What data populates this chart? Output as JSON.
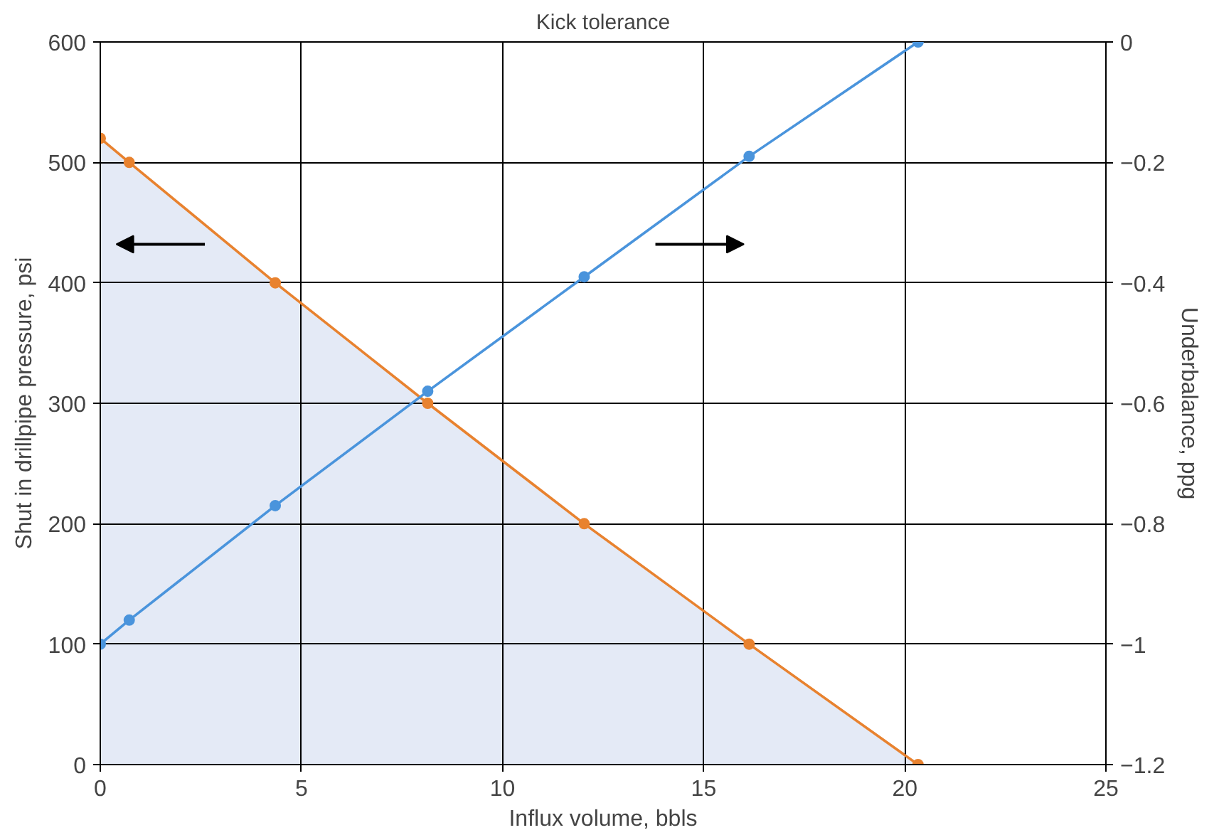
{
  "chart_data": {
    "type": "line",
    "title": "Kick tolerance",
    "xlabel": "Influx volume, bbls",
    "ylabel": "Shut in drillpipe pressure, psi",
    "y2label": "Underbalance, ppg",
    "x": [
      0,
      0.72,
      4.35,
      8.14,
      12.03,
      16.13,
      20.33
    ],
    "series": [
      {
        "type": "area",
        "color": "#e8822f",
        "values": [
          520,
          500,
          400,
          300,
          200,
          100,
          0
        ]
      },
      {
        "color": "#4a94dc",
        "axis": "y2",
        "values": [
          -1.0,
          -0.96,
          -0.77,
          -0.58,
          -0.39,
          -0.19,
          0
        ]
      }
    ],
    "xlim": [
      0,
      25
    ],
    "xticks": [
      0,
      5,
      10,
      15,
      20,
      25
    ],
    "ylim": [
      0,
      600
    ],
    "yticks": [
      0,
      100,
      200,
      300,
      400,
      500,
      600
    ],
    "y2lim": [
      -1.2,
      0
    ],
    "y2ticks": [
      {
        "value": -1.2,
        "label": "−1.2"
      },
      {
        "value": -1,
        "label": "−1"
      },
      {
        "value": -0.8,
        "label": "−0.8"
      },
      {
        "value": -0.6,
        "label": "−0.6"
      },
      {
        "value": -0.4,
        "label": "−0.4"
      },
      {
        "value": -0.2,
        "label": "−0.2"
      },
      0
    ],
    "grid": true,
    "marker": "circle",
    "line_style": "solid"
  }
}
